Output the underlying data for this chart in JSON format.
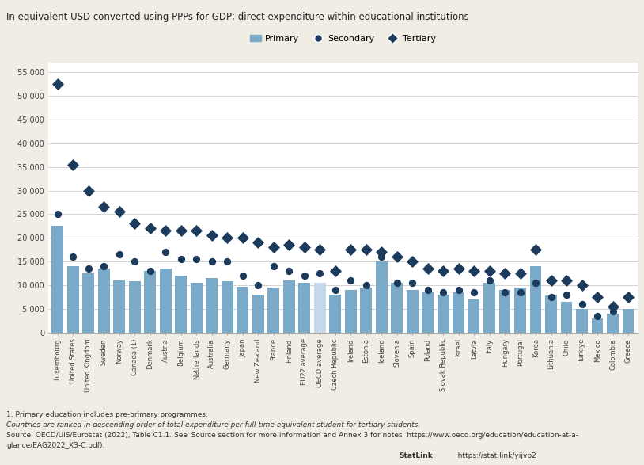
{
  "title": "In equivalent USD converted using PPPs for GDP; direct expenditure within educational institutions",
  "countries": [
    "Luxembourg",
    "United States",
    "United Kingdom",
    "Sweden",
    "Norway",
    "Canada (1)",
    "Denmark",
    "Austria",
    "Belgium",
    "Netherlands",
    "Australia",
    "Germany",
    "Japan",
    "New Zealand",
    "France",
    "Finland",
    "EU22 average",
    "OECD average",
    "Czech Republic",
    "Ireland",
    "Estonia",
    "Iceland",
    "Slovenia",
    "Spain",
    "Poland",
    "Slovak Republic",
    "Israel",
    "Latvia",
    "Italy",
    "Hungary",
    "Portugal",
    "Korea",
    "Lithuania",
    "Chile",
    "Türkiye",
    "Mexico",
    "Colombia",
    "Greece"
  ],
  "primary": [
    22500,
    14000,
    12500,
    13500,
    11000,
    10800,
    13000,
    13500,
    12000,
    10500,
    11500,
    10800,
    9700,
    8000,
    9500,
    11000,
    10500,
    10500,
    8000,
    9000,
    9500,
    15000,
    10500,
    9000,
    8700,
    8000,
    8500,
    7000,
    10500,
    9000,
    9500,
    14000,
    7800,
    6500,
    5000,
    3000,
    4000,
    5000
  ],
  "secondary": [
    25000,
    16000,
    13500,
    14000,
    16500,
    15000,
    13000,
    17000,
    15500,
    15500,
    15000,
    15000,
    12000,
    10000,
    14000,
    13000,
    12000,
    12500,
    9000,
    11000,
    10000,
    16000,
    10500,
    10500,
    9000,
    8500,
    9000,
    8500,
    11000,
    8500,
    8500,
    10500,
    7500,
    8000,
    6000,
    3500,
    4500,
    7500
  ],
  "tertiary": [
    52500,
    35500,
    30000,
    26500,
    25500,
    23000,
    22000,
    21500,
    21500,
    21500,
    20500,
    20000,
    20000,
    19000,
    18000,
    18500,
    18000,
    17500,
    13000,
    17500,
    17500,
    17000,
    16000,
    15000,
    13500,
    13000,
    13500,
    13000,
    13000,
    12500,
    12500,
    17500,
    11000,
    11000,
    10000,
    7500,
    5500,
    7500
  ],
  "highlight_idx": 17,
  "bar_color": "#7BAAC8",
  "bar_highlight_color": "#C5D8EA",
  "secondary_color": "#1B3A5C",
  "tertiary_color": "#1B3A5C",
  "figure_bg": "#F0EDE5",
  "plot_bg": "#FFFFFF",
  "grid_color": "#CCCCCC",
  "ylim": [
    0,
    57000
  ],
  "yticks": [
    0,
    5000,
    10000,
    15000,
    20000,
    25000,
    30000,
    35000,
    40000,
    45000,
    50000,
    55000
  ],
  "ytick_labels": [
    "0",
    "5 000",
    "10 000",
    "15 000",
    "20 000",
    "25 000",
    "30 000",
    "35 000",
    "40 000",
    "45 000",
    "50 000",
    "55 000"
  ]
}
